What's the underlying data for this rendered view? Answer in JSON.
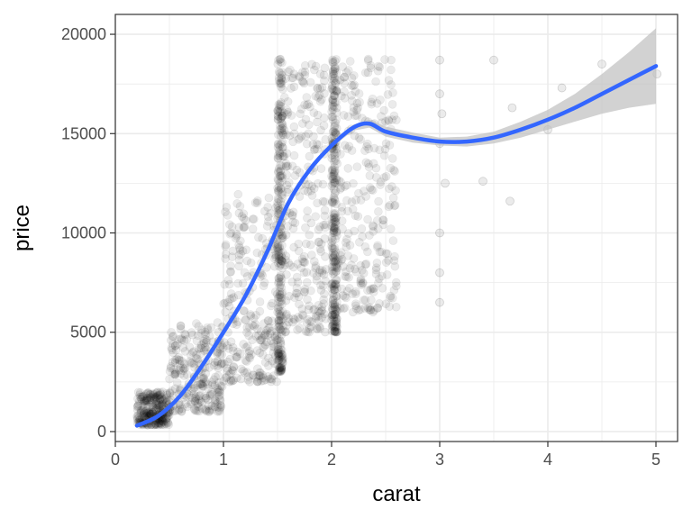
{
  "chart_data": {
    "type": "scatter",
    "title": "",
    "xlabel": "carat",
    "ylabel": "price",
    "xlim": [
      0,
      5.2
    ],
    "ylim": [
      -500,
      21000
    ],
    "x_ticks": [
      0,
      1,
      2,
      3,
      4,
      5
    ],
    "y_ticks": [
      0,
      5000,
      10000,
      15000,
      20000
    ],
    "x_tick_labels": [
      "0",
      "1",
      "2",
      "3",
      "4",
      "5"
    ],
    "y_tick_labels": [
      "0",
      "5000",
      "10000",
      "15000",
      "20000"
    ],
    "grid": true,
    "legend": "none",
    "colors": {
      "points": "#000000",
      "smooth": "#3366ff",
      "band": "#bfbfbf",
      "grid": "#ebebeb",
      "border": "#333333"
    },
    "series": [
      {
        "kind": "points",
        "alpha": 0.08,
        "clusters": [
          {
            "x": [
              0.2,
              0.5
            ],
            "y": [
              330,
              2000
            ]
          },
          {
            "x": [
              0.5,
              1.0
            ],
            "y": [
              1000,
              5500
            ]
          },
          {
            "x": [
              1.0,
              1.5
            ],
            "y": [
              2500,
              12000
            ]
          },
          {
            "x": [
              1.5,
              1.55
            ],
            "y": [
              3000,
              18800
            ]
          },
          {
            "x": [
              1.55,
              1.95
            ],
            "y": [
              5000,
              18500
            ]
          },
          {
            "x": [
              2.0,
              2.05
            ],
            "y": [
              5000,
              18800
            ]
          },
          {
            "x": [
              2.05,
              2.6
            ],
            "y": [
              6000,
              18800
            ]
          }
        ],
        "outliers": [
          {
            "x": 3.0,
            "y": 18700
          },
          {
            "x": 3.0,
            "y": 17000
          },
          {
            "x": 3.0,
            "y": 14500
          },
          {
            "x": 3.0,
            "y": 10000
          },
          {
            "x": 3.0,
            "y": 8000
          },
          {
            "x": 3.0,
            "y": 6500
          },
          {
            "x": 3.02,
            "y": 16000
          },
          {
            "x": 3.05,
            "y": 12500
          },
          {
            "x": 3.4,
            "y": 12600
          },
          {
            "x": 3.5,
            "y": 18700
          },
          {
            "x": 3.65,
            "y": 11600
          },
          {
            "x": 3.67,
            "y": 16300
          },
          {
            "x": 4.0,
            "y": 15200
          },
          {
            "x": 4.13,
            "y": 17300
          },
          {
            "x": 4.5,
            "y": 18500
          },
          {
            "x": 5.01,
            "y": 18000
          }
        ]
      },
      {
        "kind": "smooth",
        "x": [
          0.2,
          0.4,
          0.6,
          0.8,
          1.0,
          1.2,
          1.4,
          1.6,
          1.8,
          2.0,
          2.2,
          2.35,
          2.5,
          2.75,
          3.0,
          3.25,
          3.5,
          3.75,
          4.0,
          4.25,
          4.5,
          4.75,
          5.0
        ],
        "y": [
          300,
          800,
          1800,
          3300,
          5000,
          6800,
          9000,
          11500,
          13200,
          14400,
          15300,
          15500,
          15100,
          14800,
          14600,
          14600,
          14800,
          15200,
          15700,
          16300,
          17000,
          17700,
          18400
        ],
        "ymin": [
          250,
          750,
          1750,
          3250,
          4950,
          6750,
          8950,
          11450,
          13150,
          14300,
          15150,
          15300,
          14850,
          14550,
          14400,
          14350,
          14500,
          14800,
          15200,
          15600,
          16000,
          16300,
          16500
        ],
        "ymax": [
          350,
          850,
          1850,
          3350,
          5050,
          6850,
          9050,
          11550,
          13250,
          14500,
          15450,
          15700,
          15350,
          15050,
          14800,
          14850,
          15100,
          15600,
          16200,
          17000,
          18000,
          19100,
          20300
        ]
      }
    ]
  }
}
